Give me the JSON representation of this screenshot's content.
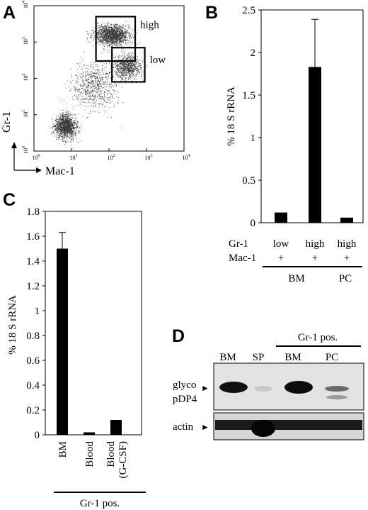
{
  "panels": {
    "A": {
      "letter": "A",
      "xlabel": "Mac-1",
      "ylabel": "Gr-1",
      "x_ticks": [
        {
          "base": "10",
          "exp": "0"
        },
        {
          "base": "10",
          "exp": "1"
        },
        {
          "base": "10",
          "exp": "2"
        },
        {
          "base": "10",
          "exp": "3"
        },
        {
          "base": "10",
          "exp": "4"
        }
      ],
      "y_ticks": [
        {
          "base": "10",
          "exp": "0"
        },
        {
          "base": "10",
          "exp": "1"
        },
        {
          "base": "10",
          "exp": "2"
        },
        {
          "base": "10",
          "exp": "3"
        },
        {
          "base": "10",
          "exp": "4"
        }
      ],
      "gates": [
        {
          "label": "high",
          "x_range": [
            45,
            500
          ],
          "y_range": [
            300,
            5000
          ]
        },
        {
          "label": "low",
          "x_range": [
            120,
            900
          ],
          "y_range": [
            80,
            700
          ]
        }
      ]
    },
    "B": {
      "letter": "B"
    },
    "C": {
      "letter": "C"
    },
    "D": {
      "letter": "D",
      "group_label": "Gr-1 pos.",
      "lanes": [
        "BM",
        "SP",
        "BM",
        "PC"
      ],
      "rows": [
        {
          "label_lines": [
            "glyco",
            "pDP4"
          ]
        },
        {
          "label_lines": [
            "actin"
          ]
        }
      ],
      "arrow_glyph": "►"
    }
  },
  "chart_data": [
    {
      "panel": "B",
      "type": "bar",
      "ylabel": "% 18 S rRNA",
      "ylim": [
        0,
        2.5
      ],
      "yticks": [
        "0",
        "0.5",
        "1",
        "1.5",
        "2",
        "2.5"
      ],
      "categories": [
        "low",
        "high",
        "high"
      ],
      "values": [
        0.12,
        1.83,
        0.06
      ],
      "error": [
        0,
        0.56,
        0
      ],
      "row_labels": [
        {
          "label": "Gr-1",
          "values": [
            "low",
            "high",
            "high"
          ]
        },
        {
          "label": "Mac-1",
          "values": [
            "+",
            "+",
            "+"
          ]
        }
      ],
      "groups": [
        {
          "label": "BM",
          "span": [
            0,
            1
          ]
        },
        {
          "label": "PC",
          "span": [
            2,
            2
          ]
        }
      ],
      "grid": false
    },
    {
      "panel": "C",
      "type": "bar",
      "ylabel": "% 18 S rRNA",
      "ylim": [
        0,
        1.8
      ],
      "yticks": [
        "0",
        "0.2",
        "0.4",
        "0.6",
        "0.8",
        "1",
        "1.2",
        "1.4",
        "1.6",
        "1.8"
      ],
      "categories": [
        "BM",
        "Blood",
        "Blood\n(G-CSF)"
      ],
      "values": [
        1.5,
        0.02,
        0.12
      ],
      "error": [
        0.13,
        0,
        0
      ],
      "group_label": "Gr-1 pos.",
      "grid": false
    }
  ]
}
